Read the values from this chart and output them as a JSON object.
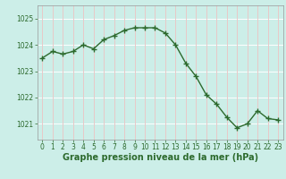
{
  "hours": [
    0,
    1,
    2,
    3,
    4,
    5,
    6,
    7,
    8,
    9,
    10,
    11,
    12,
    13,
    14,
    15,
    16,
    17,
    18,
    19,
    20,
    21,
    22,
    23
  ],
  "pressure": [
    1023.5,
    1023.75,
    1023.65,
    1023.75,
    1024.0,
    1023.85,
    1024.2,
    1024.35,
    1024.55,
    1024.65,
    1024.65,
    1024.65,
    1024.45,
    1024.0,
    1023.3,
    1022.8,
    1022.1,
    1021.75,
    1021.25,
    1020.85,
    1021.0,
    1021.5,
    1021.2,
    1021.15
  ],
  "line_color": "#2d6a2d",
  "marker": "+",
  "marker_size": 4,
  "line_width": 1.0,
  "bg_color": "#cceee8",
  "grid_color_v": "#e8c8c8",
  "grid_color_h": "#ffffff",
  "yticks": [
    1021,
    1022,
    1023,
    1024,
    1025
  ],
  "ylim": [
    1020.4,
    1025.5
  ],
  "xlim": [
    -0.5,
    23.5
  ],
  "xticks": [
    0,
    1,
    2,
    3,
    4,
    5,
    6,
    7,
    8,
    9,
    10,
    11,
    12,
    13,
    14,
    15,
    16,
    17,
    18,
    19,
    20,
    21,
    22,
    23
  ],
  "xlabel": "Graphe pression niveau de la mer (hPa)",
  "xlabel_fontsize": 7,
  "xlabel_color": "#2d6a2d",
  "tick_fontsize": 5.5,
  "tick_color": "#2d6a2d",
  "spine_color": "#999999"
}
